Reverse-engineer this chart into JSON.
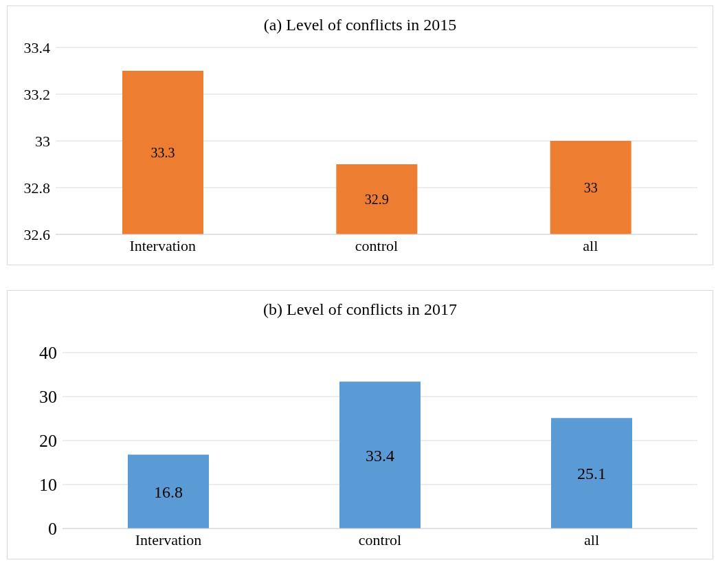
{
  "chart_data": [
    {
      "type": "bar",
      "title": "(a) Level of conflicts in 2015",
      "categories": [
        "Intervation",
        "control",
        "all"
      ],
      "values": [
        33.3,
        32.9,
        33
      ],
      "color": "#ed7d31",
      "ylim": [
        32.6,
        33.4
      ],
      "yticks": [
        32.6,
        32.8,
        33,
        33.2,
        33.4
      ],
      "grid": "y",
      "data_labels": true
    },
    {
      "type": "bar",
      "title": "(b) Level of conflicts in 2017",
      "categories": [
        "Intervation",
        "control",
        "all"
      ],
      "values": [
        16.8,
        33.4,
        25.1
      ],
      "color": "#5b9bd5",
      "ylim": [
        0,
        40
      ],
      "yticks": [
        0,
        10,
        20,
        30,
        40
      ],
      "grid": "y",
      "data_labels": true
    }
  ]
}
